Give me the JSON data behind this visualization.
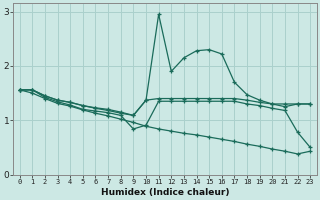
{
  "xlabel": "Humidex (Indice chaleur)",
  "bg_color": "#cce8e4",
  "line_color": "#1a6b5a",
  "grid_color": "#aad0cc",
  "x_values": [
    0,
    1,
    2,
    3,
    4,
    5,
    6,
    7,
    8,
    9,
    10,
    11,
    12,
    13,
    14,
    15,
    16,
    17,
    18,
    19,
    20,
    21,
    22,
    23
  ],
  "series1": [
    1.56,
    1.56,
    1.45,
    1.37,
    1.33,
    1.27,
    1.23,
    1.2,
    1.15,
    1.09,
    1.37,
    2.95,
    1.9,
    2.15,
    2.28,
    2.3,
    2.22,
    1.7,
    1.47,
    1.37,
    1.3,
    1.3,
    1.3,
    1.3
  ],
  "series2": [
    1.56,
    1.56,
    1.45,
    1.37,
    1.33,
    1.27,
    1.22,
    1.18,
    1.13,
    1.09,
    1.37,
    1.4,
    1.4,
    1.4,
    1.4,
    1.4,
    1.4,
    1.4,
    1.37,
    1.33,
    1.3,
    1.25,
    1.3,
    1.3
  ],
  "series3": [
    1.56,
    1.56,
    1.42,
    1.34,
    1.28,
    1.2,
    1.17,
    1.14,
    1.09,
    0.84,
    0.91,
    1.35,
    1.35,
    1.35,
    1.35,
    1.35,
    1.35,
    1.35,
    1.3,
    1.27,
    1.22,
    1.18,
    0.78,
    0.5
  ],
  "series4": [
    1.56,
    1.5,
    1.4,
    1.31,
    1.26,
    1.19,
    1.13,
    1.08,
    1.02,
    0.96,
    0.89,
    0.84,
    0.8,
    0.76,
    0.73,
    0.69,
    0.65,
    0.61,
    0.56,
    0.52,
    0.47,
    0.43,
    0.38,
    0.43
  ],
  "ylim": [
    0,
    3.15
  ],
  "xlim": [
    -0.5,
    23.5
  ],
  "yticks": [
    0,
    1,
    2,
    3
  ],
  "xticks": [
    0,
    1,
    2,
    3,
    4,
    5,
    6,
    7,
    8,
    9,
    10,
    11,
    12,
    13,
    14,
    15,
    16,
    17,
    18,
    19,
    20,
    21,
    22,
    23
  ]
}
